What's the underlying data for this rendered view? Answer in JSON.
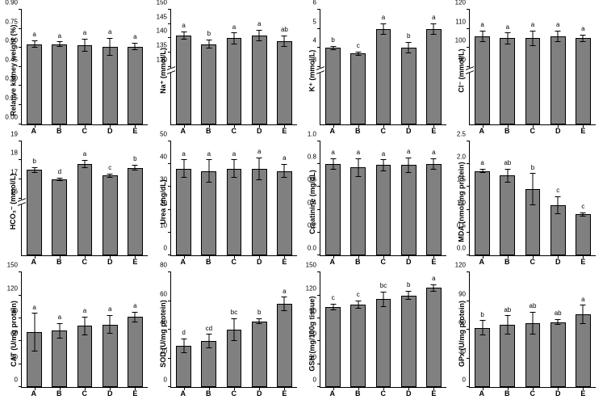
{
  "categories": [
    "A",
    "B",
    "C",
    "D",
    "E"
  ],
  "barColor": "#808080",
  "panels": [
    {
      "ylabel": "Relative kidney weight (%)",
      "ymin": 0.0,
      "ymax": 0.9,
      "ystep": 0.15,
      "decimals": 2,
      "bars": [
        {
          "v": 0.63,
          "e": 0.03,
          "s": "a"
        },
        {
          "v": 0.63,
          "e": 0.02,
          "s": "a"
        },
        {
          "v": 0.62,
          "e": 0.05,
          "s": "a"
        },
        {
          "v": 0.61,
          "e": 0.07,
          "s": "a"
        },
        {
          "v": 0.61,
          "e": 0.03,
          "s": "a"
        }
      ]
    },
    {
      "ylabel": "Na⁺ (mmol/L)",
      "ymin": 0,
      "ymax": 150,
      "ystep": 5,
      "decimals": 0,
      "break": {
        "low": 125,
        "high": 130
      },
      "visibleTicks": [
        130,
        135,
        140,
        145,
        150
      ],
      "bars": [
        {
          "v": 141,
          "e": 1.5,
          "s": "a"
        },
        {
          "v": 138,
          "e": 1.5,
          "s": "b"
        },
        {
          "v": 140,
          "e": 2.0,
          "s": "a"
        },
        {
          "v": 141,
          "e": 2.0,
          "s": "a"
        },
        {
          "v": 139,
          "e": 2.0,
          "s": "ab"
        }
      ]
    },
    {
      "ylabel": "K⁺ (mmol/L)",
      "ymin": 0,
      "ymax": 6,
      "ystep": 1,
      "decimals": 0,
      "break": {
        "low": 2.5,
        "high": 3
      },
      "visibleTicks": [
        3,
        4,
        5,
        6
      ],
      "bars": [
        {
          "v": 4.0,
          "e": 0.1,
          "s": "b"
        },
        {
          "v": 3.7,
          "e": 0.1,
          "s": "c"
        },
        {
          "v": 5.0,
          "e": 0.3,
          "s": "a"
        },
        {
          "v": 4.0,
          "e": 0.3,
          "s": "b"
        },
        {
          "v": 5.0,
          "e": 0.3,
          "s": "a"
        }
      ]
    },
    {
      "ylabel": "Cl⁻ (mmol/L)",
      "ymin": 0,
      "ymax": 120,
      "ystep": 10,
      "decimals": 0,
      "break": {
        "low": 75,
        "high": 90
      },
      "visibleTicks": [
        90,
        100,
        110,
        120
      ],
      "bars": [
        {
          "v": 106,
          "e": 3,
          "s": "a"
        },
        {
          "v": 105,
          "e": 3,
          "s": "a"
        },
        {
          "v": 105,
          "e": 4,
          "s": "a"
        },
        {
          "v": 106,
          "e": 3,
          "s": "a"
        },
        {
          "v": 105,
          "e": 2,
          "s": "a"
        }
      ]
    },
    {
      "ylabel": "HCO₃⁻ (mmol/L)",
      "ymin": 0,
      "ymax": 19,
      "ystep": 1,
      "decimals": 0,
      "break": {
        "low": 10,
        "high": 16
      },
      "visibleTicks": [
        16,
        17,
        18,
        19
      ],
      "bars": [
        {
          "v": 17.5,
          "e": 0.15,
          "s": "b"
        },
        {
          "v": 17.0,
          "e": 0.1,
          "s": "d"
        },
        {
          "v": 17.8,
          "e": 0.2,
          "s": "a"
        },
        {
          "v": 17.2,
          "e": 0.1,
          "s": "c"
        },
        {
          "v": 17.6,
          "e": 0.15,
          "s": "b"
        }
      ]
    },
    {
      "ylabel": "Urea (mg/dL)",
      "ymin": 0,
      "ymax": 50,
      "ystep": 10,
      "decimals": 0,
      "bars": [
        {
          "v": 38,
          "e": 4,
          "s": "a"
        },
        {
          "v": 37,
          "e": 5,
          "s": "a"
        },
        {
          "v": 38,
          "e": 4,
          "s": "a"
        },
        {
          "v": 38,
          "e": 5,
          "s": "a"
        },
        {
          "v": 37,
          "e": 3,
          "s": "a"
        }
      ]
    },
    {
      "ylabel": "Creatinine (mg/dL)",
      "ymin": 0.0,
      "ymax": 1.0,
      "ystep": 0.2,
      "decimals": 1,
      "bars": [
        {
          "v": 0.8,
          "e": 0.05,
          "s": "a"
        },
        {
          "v": 0.77,
          "e": 0.08,
          "s": "a"
        },
        {
          "v": 0.79,
          "e": 0.05,
          "s": "a"
        },
        {
          "v": 0.79,
          "e": 0.07,
          "s": "a"
        },
        {
          "v": 0.8,
          "e": 0.05,
          "s": "a"
        }
      ]
    },
    {
      "ylabel": "MDA (nmol/mg protein)",
      "ymin": 0.0,
      "ymax": 2.5,
      "ystep": 0.5,
      "decimals": 1,
      "bars": [
        {
          "v": 1.85,
          "e": 0.05,
          "s": "a"
        },
        {
          "v": 1.75,
          "e": 0.15,
          "s": "ab"
        },
        {
          "v": 1.45,
          "e": 0.35,
          "s": "b"
        },
        {
          "v": 1.1,
          "e": 0.2,
          "s": "c"
        },
        {
          "v": 0.9,
          "e": 0.05,
          "s": "c"
        }
      ]
    },
    {
      "ylabel": "CAT (U/mg protein)",
      "ymin": 0,
      "ymax": 150,
      "ystep": 30,
      "decimals": 0,
      "bars": [
        {
          "v": 72,
          "e": 25,
          "s": "a"
        },
        {
          "v": 74,
          "e": 10,
          "s": "a"
        },
        {
          "v": 80,
          "e": 12,
          "s": "a"
        },
        {
          "v": 82,
          "e": 12,
          "s": "a"
        },
        {
          "v": 92,
          "e": 7,
          "s": "a"
        }
      ]
    },
    {
      "ylabel": "SOD (U/mg protein)",
      "ymin": 0,
      "ymax": 80,
      "ystep": 20,
      "decimals": 0,
      "bars": [
        {
          "v": 29,
          "e": 5,
          "s": "d"
        },
        {
          "v": 32,
          "e": 5,
          "s": "cd"
        },
        {
          "v": 40,
          "e": 8,
          "s": "bc"
        },
        {
          "v": 46,
          "e": 2,
          "s": "b"
        },
        {
          "v": 58,
          "e": 5,
          "s": "a"
        }
      ]
    },
    {
      "ylabel": "GSH (mg/100g tissue)",
      "ymin": 0,
      "ymax": 150,
      "ystep": 30,
      "decimals": 0,
      "bars": [
        {
          "v": 105,
          "e": 4,
          "s": "c"
        },
        {
          "v": 108,
          "e": 5,
          "s": "c"
        },
        {
          "v": 115,
          "e": 10,
          "s": "bc"
        },
        {
          "v": 120,
          "e": 6,
          "s": "b"
        },
        {
          "v": 130,
          "e": 5,
          "s": "a"
        }
      ]
    },
    {
      "ylabel": "GPx (U/mg protein)",
      "ymin": 0,
      "ymax": 120,
      "ystep": 30,
      "decimals": 0,
      "bars": [
        {
          "v": 62,
          "e": 8,
          "s": "b"
        },
        {
          "v": 65,
          "e": 10,
          "s": "ab"
        },
        {
          "v": 67,
          "e": 12,
          "s": "ab"
        },
        {
          "v": 68,
          "e": 3,
          "s": "ab"
        },
        {
          "v": 76,
          "e": 10,
          "s": "a"
        }
      ]
    }
  ]
}
